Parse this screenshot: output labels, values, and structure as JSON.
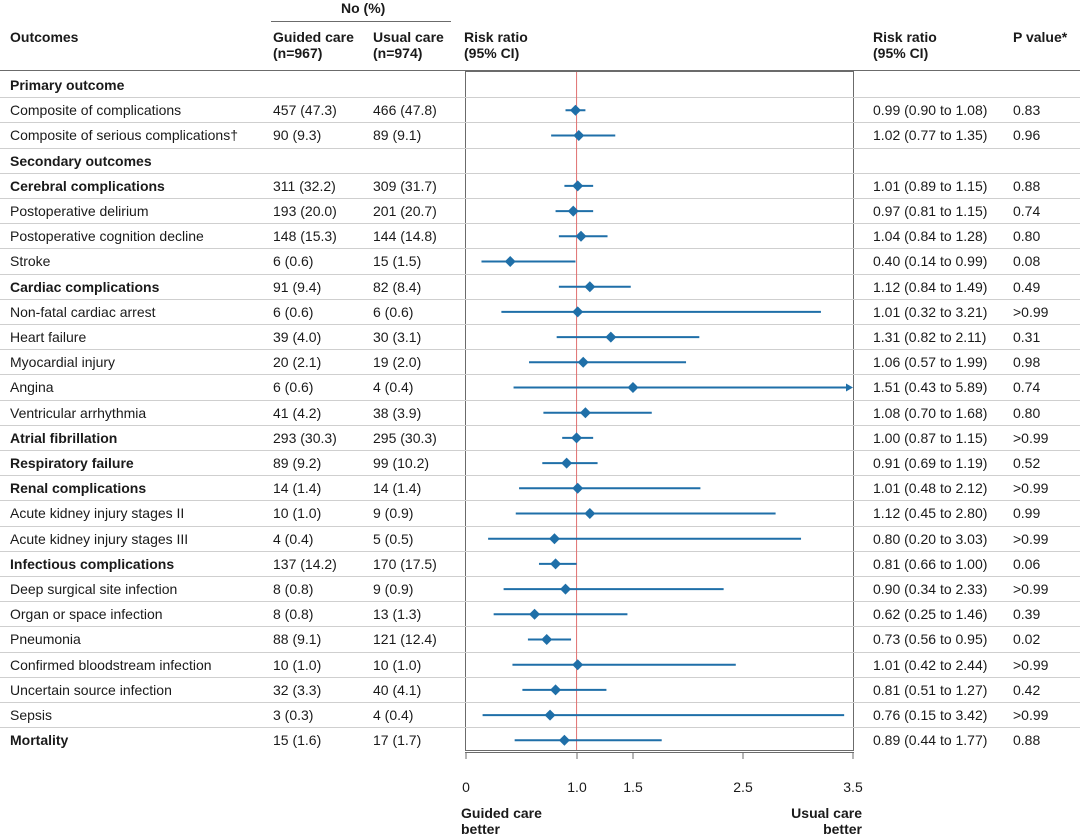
{
  "header": {
    "outcomes": "Outcomes",
    "no_pct": "No (%)",
    "guided_line1": "Guided care",
    "guided_line2": "(n=967)",
    "usual_line1": "Usual care",
    "usual_line2": "(n=974)",
    "rr_plot_line1": "Risk ratio",
    "rr_plot_line2": "(95% CI)",
    "rr_col_line1": "Risk ratio",
    "rr_col_line2": "(95% CI)",
    "p_value": "P value*"
  },
  "colors": {
    "marker": "#1f6fa8",
    "refline": "#e07070",
    "rule": "#6b6b6b",
    "row_rule": "#cfcfcf"
  },
  "rows": [
    {
      "label": "Primary outcome",
      "bold": true,
      "section": true
    },
    {
      "label": "Composite of complications",
      "bold": false,
      "guided": "457 (47.3)",
      "usual": "466 (47.8)",
      "rr_text": "0.99 (0.90 to 1.08)",
      "p": "0.83"
    },
    {
      "label": "Composite of serious complications†",
      "bold": false,
      "guided": "90 (9.3)",
      "usual": "89 (9.1)",
      "rr_text": "1.02 (0.77 to 1.35)",
      "p": "0.96"
    },
    {
      "label": "Secondary outcomes",
      "bold": true,
      "section": true
    },
    {
      "label": "Cerebral complications",
      "bold": true,
      "guided": "311 (32.2)",
      "usual": "309 (31.7)",
      "rr_text": "1.01 (0.89 to 1.15)",
      "p": "0.88"
    },
    {
      "label": "Postoperative delirium",
      "bold": false,
      "guided": "193 (20.0)",
      "usual": "201 (20.7)",
      "rr_text": "0.97 (0.81 to 1.15)",
      "p": "0.74"
    },
    {
      "label": "Postoperative cognition decline",
      "bold": false,
      "guided": "148 (15.3)",
      "usual": "144 (14.8)",
      "rr_text": "1.04 (0.84 to 1.28)",
      "p": "0.80"
    },
    {
      "label": "Stroke",
      "bold": false,
      "guided": "6 (0.6)",
      "usual": "15 (1.5)",
      "rr_text": "0.40 (0.14 to 0.99)",
      "p": "0.08"
    },
    {
      "label": "Cardiac complications",
      "bold": true,
      "guided": "91 (9.4)",
      "usual": "82 (8.4)",
      "rr_text": "1.12 (0.84 to 1.49)",
      "p": "0.49"
    },
    {
      "label": "Non-fatal cardiac arrest",
      "bold": false,
      "guided": "6 (0.6)",
      "usual": "6 (0.6)",
      "rr_text": "1.01 (0.32 to 3.21)",
      "p": ">0.99"
    },
    {
      "label": "Heart failure",
      "bold": false,
      "guided": "39 (4.0)",
      "usual": "30 (3.1)",
      "rr_text": "1.31 (0.82 to 2.11)",
      "p": "0.31"
    },
    {
      "label": "Myocardial injury",
      "bold": false,
      "guided": "20 (2.1)",
      "usual": "19 (2.0)",
      "rr_text": "1.06 (0.57 to 1.99)",
      "p": "0.98"
    },
    {
      "label": "Angina",
      "bold": false,
      "guided": "6 (0.6)",
      "usual": "4 (0.4)",
      "rr_text": "1.51 (0.43 to 5.89)",
      "p": "0.74"
    },
    {
      "label": "Ventricular arrhythmia",
      "bold": false,
      "guided": "41 (4.2)",
      "usual": "38 (3.9)",
      "rr_text": "1.08 (0.70 to 1.68)",
      "p": "0.80"
    },
    {
      "label": "Atrial fibrillation",
      "bold": true,
      "guided": "293 (30.3)",
      "usual": "295 (30.3)",
      "rr_text": "1.00 (0.87 to 1.15)",
      "p": ">0.99"
    },
    {
      "label": "Respiratory failure",
      "bold": true,
      "guided": "89 (9.2)",
      "usual": "99 (10.2)",
      "rr_text": "0.91 (0.69 to 1.19)",
      "p": "0.52"
    },
    {
      "label": "Renal complications",
      "bold": true,
      "guided": "14 (1.4)",
      "usual": "14 (1.4)",
      "rr_text": "1.01 (0.48 to 2.12)",
      "p": ">0.99"
    },
    {
      "label": "Acute kidney injury stages II",
      "bold": false,
      "guided": "10 (1.0)",
      "usual": "9 (0.9)",
      "rr_text": "1.12 (0.45 to 2.80)",
      "p": "0.99"
    },
    {
      "label": "Acute kidney injury stages III",
      "bold": false,
      "guided": "4 (0.4)",
      "usual": "5 (0.5)",
      "rr_text": "0.80 (0.20 to 3.03)",
      "p": ">0.99"
    },
    {
      "label": "Infectious complications",
      "bold": true,
      "guided": "137 (14.2)",
      "usual": "170 (17.5)",
      "rr_text": "0.81 (0.66 to 1.00)",
      "p": "0.06"
    },
    {
      "label": "Deep surgical site infection",
      "bold": false,
      "guided": "8 (0.8)",
      "usual": "9 (0.9)",
      "rr_text": "0.90 (0.34 to 2.33)",
      "p": ">0.99"
    },
    {
      "label": "Organ or space infection",
      "bold": false,
      "guided": "8 (0.8)",
      "usual": "13 (1.3)",
      "rr_text": "0.62 (0.25 to 1.46)",
      "p": "0.39"
    },
    {
      "label": "Pneumonia",
      "bold": false,
      "guided": "88 (9.1)",
      "usual": "121 (12.4)",
      "rr_text": "0.73 (0.56 to 0.95)",
      "p": "0.02"
    },
    {
      "label": "Confirmed bloodstream infection",
      "bold": false,
      "guided": "10 (1.0)",
      "usual": "10 (1.0)",
      "rr_text": "1.01 (0.42 to 2.44)",
      "p": ">0.99"
    },
    {
      "label": "Uncertain source infection",
      "bold": false,
      "guided": "32 (3.3)",
      "usual": "40 (4.1)",
      "rr_text": "0.81 (0.51 to 1.27)",
      "p": "0.42"
    },
    {
      "label": "Sepsis",
      "bold": false,
      "guided": "3 (0.3)",
      "usual": "4 (0.4)",
      "rr_text": "0.76 (0.15 to 3.42)",
      "p": ">0.99"
    },
    {
      "label": "Mortality",
      "bold": true,
      "guided": "15 (1.6)",
      "usual": "17 (1.7)",
      "rr_text": "0.89 (0.44 to 1.77)",
      "p": "0.88"
    }
  ],
  "chart_data": {
    "type": "forest",
    "xlabel": "",
    "x_range": [
      0,
      3.5
    ],
    "x_ticks": [
      "0",
      "1.0",
      "1.5",
      "2.5",
      "3.5"
    ],
    "reference_line": 1.0,
    "left_annotation": [
      "Guided care",
      "better"
    ],
    "right_annotation": [
      "Usual care",
      "better"
    ],
    "estimates": [
      {
        "outcome": "Composite of complications",
        "rr": 0.99,
        "lo": 0.9,
        "hi": 1.08
      },
      {
        "outcome": "Composite of serious complications†",
        "rr": 1.02,
        "lo": 0.77,
        "hi": 1.35
      },
      {
        "outcome": "Cerebral complications",
        "rr": 1.01,
        "lo": 0.89,
        "hi": 1.15
      },
      {
        "outcome": "Postoperative delirium",
        "rr": 0.97,
        "lo": 0.81,
        "hi": 1.15
      },
      {
        "outcome": "Postoperative cognition decline",
        "rr": 1.04,
        "lo": 0.84,
        "hi": 1.28
      },
      {
        "outcome": "Stroke",
        "rr": 0.4,
        "lo": 0.14,
        "hi": 0.99
      },
      {
        "outcome": "Cardiac complications",
        "rr": 1.12,
        "lo": 0.84,
        "hi": 1.49
      },
      {
        "outcome": "Non-fatal cardiac arrest",
        "rr": 1.01,
        "lo": 0.32,
        "hi": 3.21
      },
      {
        "outcome": "Heart failure",
        "rr": 1.31,
        "lo": 0.82,
        "hi": 2.11
      },
      {
        "outcome": "Myocardial injury",
        "rr": 1.06,
        "lo": 0.57,
        "hi": 1.99
      },
      {
        "outcome": "Angina",
        "rr": 1.51,
        "lo": 0.43,
        "hi": 5.89
      },
      {
        "outcome": "Ventricular arrhythmia",
        "rr": 1.08,
        "lo": 0.7,
        "hi": 1.68
      },
      {
        "outcome": "Atrial fibrillation",
        "rr": 1.0,
        "lo": 0.87,
        "hi": 1.15
      },
      {
        "outcome": "Respiratory failure",
        "rr": 0.91,
        "lo": 0.69,
        "hi": 1.19
      },
      {
        "outcome": "Renal complications",
        "rr": 1.01,
        "lo": 0.48,
        "hi": 2.12
      },
      {
        "outcome": "Acute kidney injury stages II",
        "rr": 1.12,
        "lo": 0.45,
        "hi": 2.8
      },
      {
        "outcome": "Acute kidney injury stages III",
        "rr": 0.8,
        "lo": 0.2,
        "hi": 3.03
      },
      {
        "outcome": "Infectious complications",
        "rr": 0.81,
        "lo": 0.66,
        "hi": 1.0
      },
      {
        "outcome": "Deep surgical site infection",
        "rr": 0.9,
        "lo": 0.34,
        "hi": 2.33
      },
      {
        "outcome": "Organ or space infection",
        "rr": 0.62,
        "lo": 0.25,
        "hi": 1.46
      },
      {
        "outcome": "Pneumonia",
        "rr": 0.73,
        "lo": 0.56,
        "hi": 0.95
      },
      {
        "outcome": "Confirmed bloodstream infection",
        "rr": 1.01,
        "lo": 0.42,
        "hi": 2.44
      },
      {
        "outcome": "Uncertain source infection",
        "rr": 0.81,
        "lo": 0.51,
        "hi": 1.27
      },
      {
        "outcome": "Sepsis",
        "rr": 0.76,
        "lo": 0.15,
        "hi": 3.42
      },
      {
        "outcome": "Mortality",
        "rr": 0.89,
        "lo": 0.44,
        "hi": 1.77
      }
    ]
  }
}
